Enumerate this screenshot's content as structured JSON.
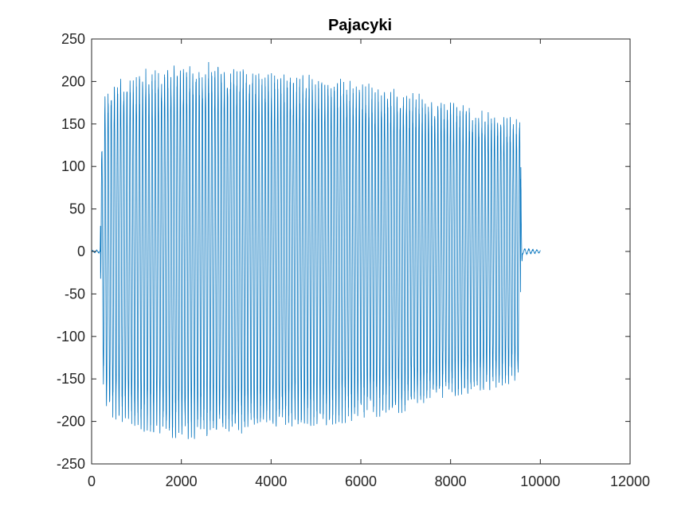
{
  "chart_data": {
    "type": "line",
    "title": "Pajacyki",
    "xlabel": "",
    "ylabel": "",
    "xlim": [
      0,
      12000
    ],
    "ylim": [
      -250,
      250
    ],
    "xticks": [
      0,
      2000,
      4000,
      6000,
      8000,
      10000,
      12000
    ],
    "yticks": [
      -250,
      -200,
      -150,
      -100,
      -50,
      0,
      50,
      100,
      150,
      200,
      250
    ],
    "xtick_labels": [
      "0",
      "2000",
      "4000",
      "6000",
      "8000",
      "10000",
      "12000"
    ],
    "ytick_labels": [
      "-250",
      "-200",
      "-150",
      "-100",
      "-50",
      "0",
      "50",
      "100",
      "150",
      "200",
      "250"
    ],
    "grid": false,
    "series": [
      {
        "color": "#0072BD",
        "signal": {
          "x_start": 0,
          "x_end": 10000,
          "x_step": 2,
          "oscillation_period": 70,
          "active_range": [
            200,
            9560
          ],
          "envelope_x": [
            0,
            190,
            220,
            300,
            500,
            800,
            1200,
            1600,
            2000,
            2600,
            3000,
            4000,
            5000,
            6000,
            7000,
            8000,
            9000,
            9400,
            9550,
            9600,
            10000
          ],
          "envelope_y": [
            1,
            2,
            120,
            182,
            192,
            200,
            208,
            212,
            213,
            215,
            213,
            205,
            200,
            192,
            183,
            170,
            158,
            152,
            150,
            4,
            2
          ]
        }
      }
    ]
  }
}
